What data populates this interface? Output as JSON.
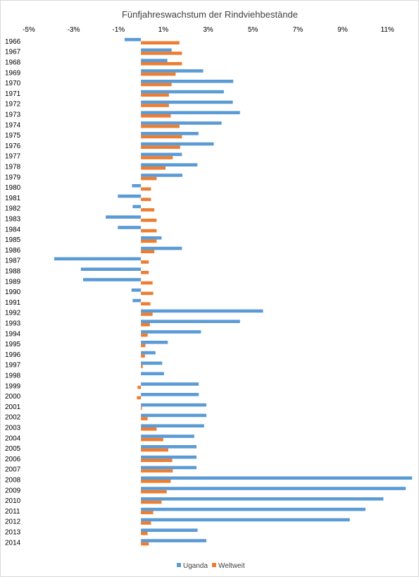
{
  "chart_data": {
    "type": "bar",
    "orientation": "horizontal",
    "title": "Fünfjahreswachstum der Rindviehbestände",
    "x_tick_labels": [
      "-5%",
      "-3%",
      "-1%",
      "1%",
      "3%",
      "5%",
      "7%",
      "9%",
      "11%"
    ],
    "xlim": [
      -0.05,
      0.12
    ],
    "grid": false,
    "legend_position": "bottom",
    "categories": [
      "1966",
      "1967",
      "1968",
      "1969",
      "1970",
      "1971",
      "1972",
      "1973",
      "1974",
      "1975",
      "1976",
      "1977",
      "1978",
      "1979",
      "1980",
      "1981",
      "1982",
      "1983",
      "1984",
      "1985",
      "1986",
      "1987",
      "1988",
      "1989",
      "1990",
      "1991",
      "1992",
      "1993",
      "1994",
      "1995",
      "1996",
      "1997",
      "1998",
      "1999",
      "2000",
      "2001",
      "2002",
      "2003",
      "2004",
      "2005",
      "2006",
      "2007",
      "2008",
      "2009",
      "2010",
      "2011",
      "2012",
      "2013",
      "2014"
    ],
    "series": [
      {
        "name": "Uganda",
        "color": "#5b9bd5",
        "values": [
          -0.0073,
          0.0137,
          0.0118,
          0.0278,
          0.0412,
          0.037,
          0.041,
          0.0442,
          0.036,
          0.0257,
          0.0325,
          0.0183,
          0.0252,
          0.0185,
          -0.004,
          -0.0103,
          -0.0037,
          -0.0157,
          -0.0103,
          0.0092,
          0.0183,
          -0.0387,
          -0.0268,
          -0.0258,
          -0.0042,
          -0.0037,
          0.0545,
          0.0442,
          0.0268,
          0.012,
          0.0065,
          0.0095,
          0.0103,
          0.0258,
          0.0258,
          0.0292,
          0.0292,
          0.0282,
          0.0238,
          0.0248,
          0.0248,
          0.0248,
          0.121,
          0.1182,
          0.1082,
          0.1002,
          0.0932,
          0.0253,
          0.0292
        ]
      },
      {
        "name": "Weltweit",
        "color": "#ed7d31",
        "values": [
          0.0172,
          0.0183,
          0.0183,
          0.0155,
          0.0137,
          0.0125,
          0.0125,
          0.0133,
          0.0172,
          0.0183,
          0.0175,
          0.0142,
          0.011,
          0.007,
          0.0045,
          0.0045,
          0.006,
          0.007,
          0.007,
          0.007,
          0.006,
          0.0035,
          0.0035,
          0.0052,
          0.0055,
          0.0042,
          0.0052,
          0.004,
          0.003,
          0.002,
          0.0018,
          0.0008,
          0.0,
          -0.0015,
          -0.0018,
          0.0005,
          0.003,
          0.007,
          0.01,
          0.0122,
          0.014,
          0.0142,
          0.0133,
          0.0115,
          0.0092,
          0.0055,
          0.0045,
          0.003,
          0.0035
        ]
      }
    ]
  }
}
